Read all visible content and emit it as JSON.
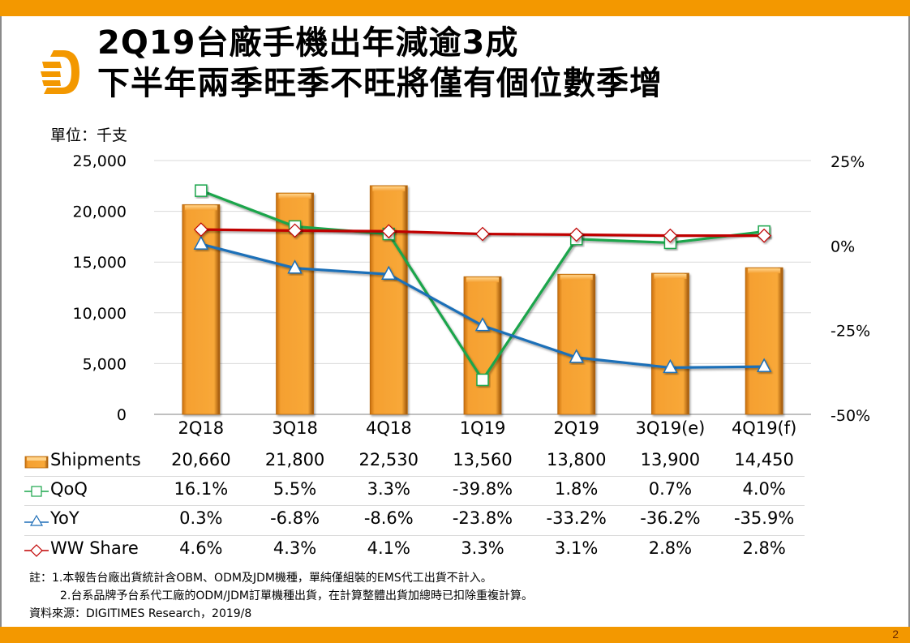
{
  "slide": {
    "title_line1": "2Q19台廠手機出年減逾3成",
    "title_line2": "下半年兩季旺季不旺將僅有個位數季增",
    "unit_label": "單位：千支",
    "page_number": "2",
    "brand_color": "#F39800",
    "logo_icon": "digitimes-d-logo"
  },
  "notes": {
    "line1": "註：1.本報告台廠出貨統計含OBM、ODM及JDM機種，單純僅組裝的EMS代工出貨不計入。",
    "line2": "2.台系品牌予台系代工廠的ODM/JDM訂單機種出貨，在計算整體出貨加總時已扣除重複計算。",
    "source": "資料來源：DIGITIMES Research，2019/8"
  },
  "chart_data": {
    "type": "bar+line",
    "title": "2Q19台廠手機出年減逾3成",
    "ylabel": "單位：千支",
    "categories": [
      "2Q18",
      "3Q18",
      "4Q18",
      "1Q19",
      "2Q19",
      "3Q19(e)",
      "4Q19(f)"
    ],
    "left_axis": {
      "range": [
        0,
        25000
      ],
      "ticks": [
        "0",
        "5,000",
        "10,000",
        "15,000",
        "20,000",
        "25,000"
      ],
      "tick_values": [
        0,
        5000,
        10000,
        15000,
        20000,
        25000
      ]
    },
    "right_axis": {
      "range": [
        -50,
        25
      ],
      "ticks": [
        "-50%",
        "-25%",
        "0%",
        "25%"
      ],
      "tick_values": [
        -50,
        -25,
        0,
        25
      ]
    },
    "grid": true,
    "series": [
      {
        "name": "Shipments",
        "kind": "bar",
        "axis": "left",
        "color": "#F5A031",
        "icon": "orange-bar-swatch",
        "values": [
          20660,
          21800,
          22530,
          13560,
          13800,
          13900,
          14450
        ],
        "labels": [
          "20,660",
          "21,800",
          "22,530",
          "13,560",
          "13,800",
          "13,900",
          "14,450"
        ]
      },
      {
        "name": "QoQ",
        "kind": "line",
        "axis": "right",
        "color": "#1AA54B",
        "marker": "square",
        "icon": "green-square-line-marker",
        "values": [
          16.1,
          5.5,
          3.3,
          -39.8,
          1.8,
          0.7,
          4.0
        ],
        "labels": [
          "16.1%",
          "5.5%",
          "3.3%",
          "-39.8%",
          "1.8%",
          "0.7%",
          "4.0%"
        ]
      },
      {
        "name": "YoY",
        "kind": "line",
        "axis": "right",
        "color": "#1F6FB8",
        "marker": "triangle",
        "icon": "blue-triangle-line-marker",
        "values": [
          0.3,
          -6.8,
          -8.6,
          -23.8,
          -33.2,
          -36.2,
          -35.9
        ],
        "labels": [
          "0.3%",
          "-6.8%",
          "-8.6%",
          "-23.8%",
          "-33.2%",
          "-36.2%",
          "-35.9%"
        ]
      },
      {
        "name": "WW Share",
        "kind": "line",
        "axis": "right",
        "color": "#C00000",
        "marker": "diamond",
        "icon": "red-diamond-line-marker",
        "values": [
          4.6,
          4.3,
          4.1,
          3.3,
          3.1,
          2.8,
          2.8
        ],
        "labels": [
          "4.6%",
          "4.3%",
          "4.1%",
          "3.3%",
          "3.1%",
          "2.8%",
          "2.8%"
        ]
      }
    ],
    "legend": "data-table-bottom"
  }
}
